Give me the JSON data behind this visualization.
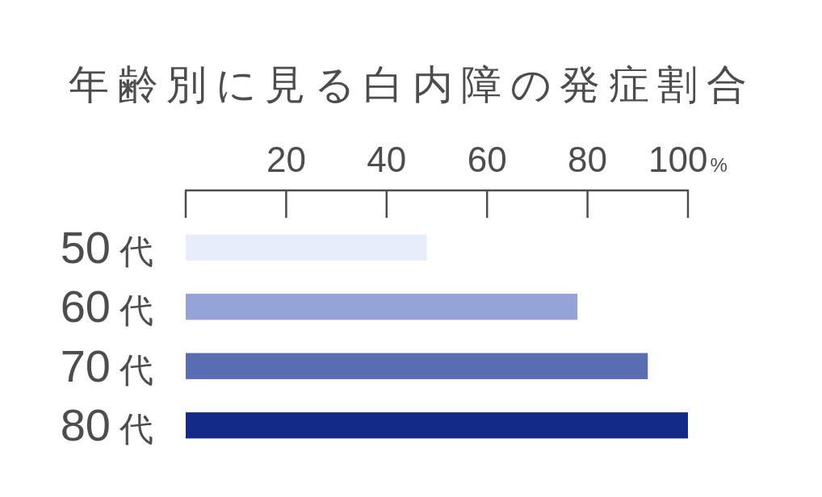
{
  "chart_data": {
    "type": "bar",
    "orientation": "horizontal",
    "title": "年齢別に見る白内障の発症割合",
    "categories": [
      "50代",
      "60代",
      "70代",
      "80代"
    ],
    "values": [
      48,
      78,
      92,
      100
    ],
    "colors": [
      "#e8edfc",
      "#96a3d8",
      "#5a6cb2",
      "#142a88"
    ],
    "xlim": [
      0,
      100
    ],
    "xticks": [
      20,
      40,
      60,
      80,
      {
        "value": 100,
        "label": "100%"
      }
    ]
  }
}
